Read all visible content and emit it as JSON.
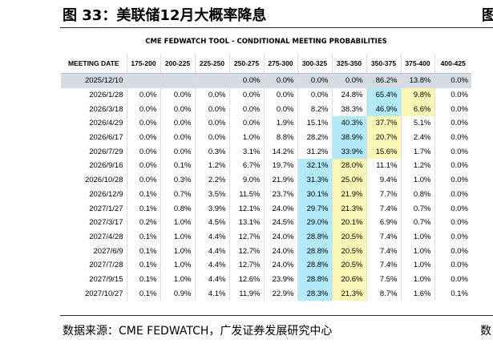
{
  "title": "图 33：美联储12月大概率降息",
  "right_fragment": "图",
  "tool_header": "CME FEDWATCH TOOL - CONDITIONAL MEETING PROBABILITIES",
  "columns": [
    "MEETING DATE",
    "175-200",
    "200-225",
    "225-250",
    "250-275",
    "275-300",
    "300-325",
    "325-350",
    "350-375",
    "375-400",
    "400-425"
  ],
  "rows": [
    [
      "2025/12/10",
      "",
      "",
      "",
      "0.0%",
      "0.0%",
      "0.0%",
      "0.0%",
      "86.2%",
      "13.8%",
      "0.0%"
    ],
    [
      "2026/1/28",
      "0.0%",
      "0.0%",
      "0.0%",
      "0.0%",
      "0.0%",
      "0.0%",
      "24.8%",
      "65.4%",
      "9.8%",
      "0.0%"
    ],
    [
      "2026/3/18",
      "0.0%",
      "0.0%",
      "0.0%",
      "0.0%",
      "0.0%",
      "8.2%",
      "38.3%",
      "46.9%",
      "6.6%",
      "0.0%"
    ],
    [
      "2026/4/29",
      "0.0%",
      "0.0%",
      "0.0%",
      "0.0%",
      "1.9%",
      "15.1%",
      "40.3%",
      "37.7%",
      "5.1%",
      "0.0%"
    ],
    [
      "2026/6/17",
      "0.0%",
      "0.0%",
      "0.0%",
      "1.0%",
      "8.8%",
      "28.2%",
      "38.9%",
      "20.7%",
      "2.4%",
      "0.0%"
    ],
    [
      "2026/7/29",
      "0.0%",
      "0.0%",
      "0.3%",
      "3.1%",
      "14.2%",
      "31.2%",
      "33.9%",
      "15.6%",
      "1.7%",
      "0.0%"
    ],
    [
      "2026/9/16",
      "0.0%",
      "0.1%",
      "1.2%",
      "6.7%",
      "19.7%",
      "32.1%",
      "28.0%",
      "11.1%",
      "1.2%",
      "0.0%"
    ],
    [
      "2026/10/28",
      "0.0%",
      "0.3%",
      "2.2%",
      "9.0%",
      "21.9%",
      "31.3%",
      "25.0%",
      "9.4%",
      "1.0%",
      "0.0%"
    ],
    [
      "2026/12/9",
      "0.1%",
      "0.7%",
      "3.5%",
      "11.5%",
      "23.7%",
      "30.1%",
      "21.9%",
      "7.7%",
      "0.8%",
      "0.0%"
    ],
    [
      "2027/1/27",
      "0.1%",
      "0.8%",
      "3.9%",
      "12.1%",
      "24.0%",
      "29.7%",
      "21.3%",
      "7.4%",
      "0.7%",
      "0.0%"
    ],
    [
      "2027/3/17",
      "0.2%",
      "1.0%",
      "4.5%",
      "13.1%",
      "24.5%",
      "29.0%",
      "20.1%",
      "6.9%",
      "0.7%",
      "0.0%"
    ],
    [
      "2027/4/28",
      "0.1%",
      "1.0%",
      "4.4%",
      "12.7%",
      "24.0%",
      "28.8%",
      "20.5%",
      "7.4%",
      "1.0%",
      "0.0%"
    ],
    [
      "2027/6/9",
      "0.1%",
      "1.0%",
      "4.4%",
      "12.7%",
      "24.0%",
      "28.8%",
      "20.5%",
      "7.4%",
      "1.0%",
      "0.0%"
    ],
    [
      "2027/7/28",
      "0.1%",
      "1.0%",
      "4.4%",
      "12.7%",
      "24.0%",
      "28.8%",
      "20.5%",
      "7.4%",
      "1.0%",
      "0.0%"
    ],
    [
      "2027/9/15",
      "0.1%",
      "1.0%",
      "4.4%",
      "12.6%",
      "23.9%",
      "28.8%",
      "20.6%",
      "7.5%",
      "1.0%",
      "0.0%"
    ],
    [
      "2027/10/27",
      "0.1%",
      "0.9%",
      "4.1%",
      "11.9%",
      "22.9%",
      "28.3%",
      "21.3%",
      "8.7%",
      "1.6%",
      "0.1%"
    ]
  ],
  "highlights": {
    "cyan": [
      [
        1,
        8
      ],
      [
        2,
        8
      ],
      [
        3,
        7
      ],
      [
        4,
        7
      ],
      [
        5,
        7
      ],
      [
        6,
        6
      ],
      [
        7,
        6
      ],
      [
        8,
        6
      ],
      [
        9,
        6
      ],
      [
        10,
        6
      ],
      [
        11,
        6
      ],
      [
        12,
        6
      ],
      [
        13,
        6
      ],
      [
        14,
        6
      ],
      [
        15,
        6
      ]
    ],
    "yellow": [
      [
        1,
        9
      ],
      [
        2,
        9
      ],
      [
        3,
        8
      ],
      [
        4,
        8
      ],
      [
        5,
        8
      ],
      [
        6,
        7
      ],
      [
        7,
        7
      ],
      [
        8,
        7
      ],
      [
        9,
        7
      ],
      [
        10,
        7
      ],
      [
        11,
        7
      ],
      [
        12,
        7
      ],
      [
        13,
        7
      ],
      [
        14,
        7
      ],
      [
        15,
        7
      ]
    ],
    "cyan_color": "#b3eaf9",
    "yellow_color": "#fbf8b7",
    "first_row_color": "#d5dce4"
  },
  "source": "数据来源：CME FEDWATCH，广发证券发展研究中心",
  "source_right_fragment": "数"
}
